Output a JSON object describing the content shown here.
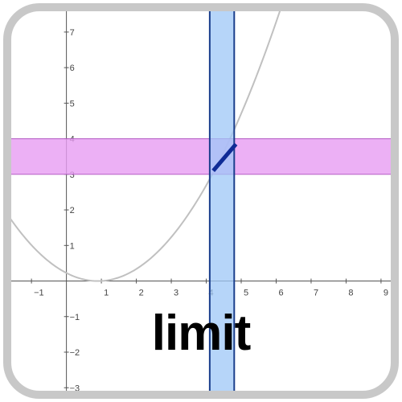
{
  "caption": "limit",
  "colors": {
    "frame": "#c8c8c8",
    "axis": "#555555",
    "curve": "#c0c0c0",
    "vertical_band_fill": "#9ec7f7",
    "vertical_band_stroke": "#1a3e8c",
    "horizontal_band_fill": "#e79cf2",
    "horizontal_band_stroke": "#b45bc4",
    "segment": "#0f2b96",
    "text": "#000000"
  },
  "chart_data": {
    "type": "line",
    "xlim": [
      -1.9,
      9.6
    ],
    "ylim": [
      -3.4,
      7.9
    ],
    "x_ticks": [
      "−1",
      "1",
      "2",
      "3",
      "4",
      "5",
      "6",
      "7",
      "8",
      "9"
    ],
    "x_tick_values": [
      -1,
      1,
      2,
      3,
      4,
      5,
      6,
      7,
      8,
      9
    ],
    "y_ticks": [
      "7",
      "6",
      "5",
      "4",
      "3",
      "2",
      "1",
      "−1",
      "−2",
      "−3"
    ],
    "y_tick_values": [
      7,
      6,
      5,
      4,
      3,
      2,
      1,
      -1,
      -2,
      -3
    ],
    "curve": {
      "kind": "parabola",
      "vertex_x": 0.9,
      "coefficient": 0.28
    },
    "vertical_band": {
      "x_min": 4.1,
      "x_max": 4.8
    },
    "horizontal_band": {
      "y_min": 3.0,
      "y_max": 4.0
    },
    "segment": {
      "x": [
        4.2,
        4.85
      ],
      "y": [
        3.1,
        3.85
      ]
    },
    "grid": false
  }
}
